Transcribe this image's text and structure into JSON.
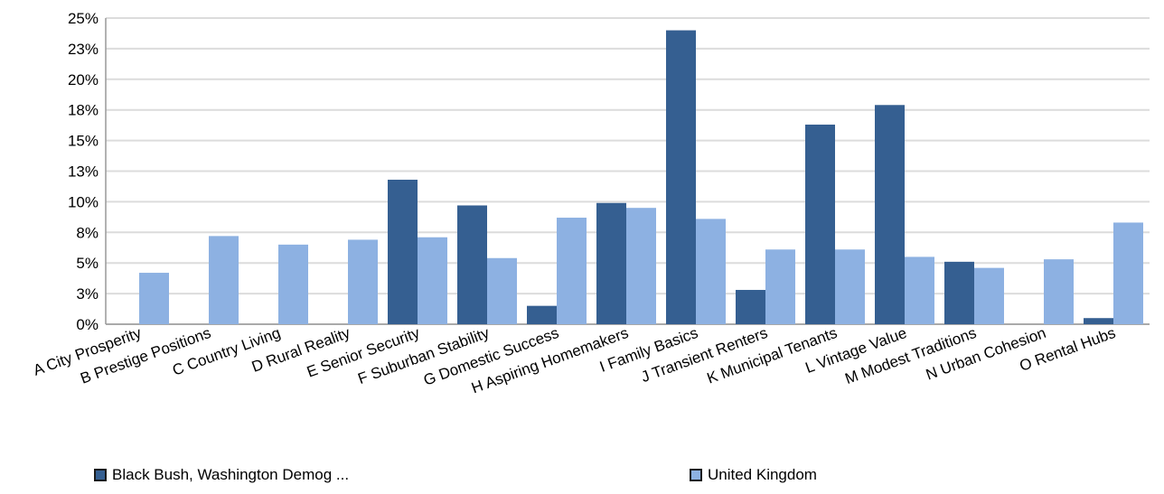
{
  "chart_data": {
    "type": "bar",
    "categories": [
      "A City Prosperity",
      "B Prestige Positions",
      "C Country Living",
      "D Rural Reality",
      "E Senior Security",
      "F Suburban Stability",
      "G Domestic Success",
      "H Aspiring Homemakers",
      "I Family Basics",
      "J Transient Renters",
      "K Municipal Tenants",
      "L Vintage Value",
      "M Modest Traditions",
      "N Urban Cohesion",
      "O Rental Hubs"
    ],
    "series": [
      {
        "name": "Black Bush, Washington Demog ...",
        "color": "#355f91",
        "values": [
          0,
          0,
          0,
          0,
          11.8,
          9.7,
          1.5,
          9.9,
          24.0,
          2.8,
          16.3,
          17.9,
          5.1,
          0,
          0.5
        ]
      },
      {
        "name": "United Kingdom",
        "color": "#8db1e2",
        "values": [
          4.2,
          7.2,
          6.5,
          6.9,
          7.1,
          5.4,
          8.7,
          9.5,
          8.6,
          6.1,
          6.1,
          5.5,
          4.6,
          5.3,
          8.3
        ]
      }
    ],
    "y_ticks": [
      "0%",
      "3%",
      "5%",
      "8%",
      "10%",
      "13%",
      "15%",
      "18%",
      "20%",
      "23%",
      "25%"
    ],
    "ylim": [
      0,
      25
    ],
    "grid": true,
    "legend_position": "bottom"
  }
}
